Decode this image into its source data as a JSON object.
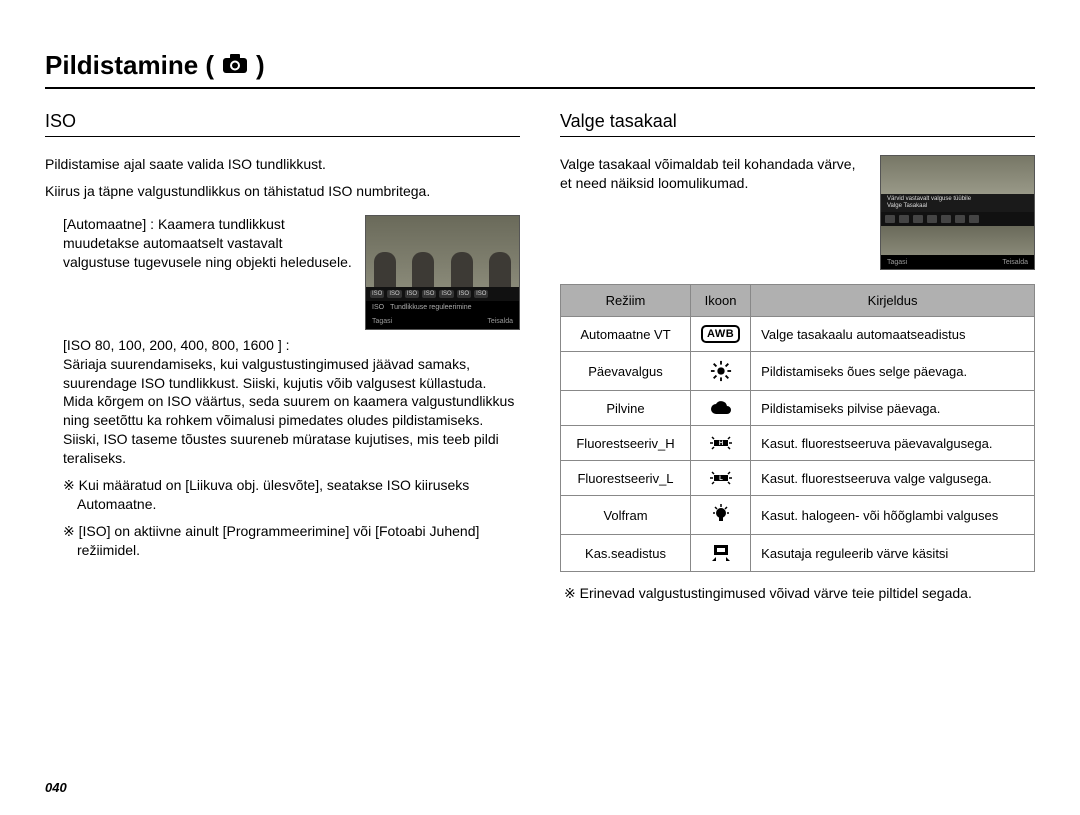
{
  "page": {
    "title_prefix": "Pildistamine (",
    "title_suffix": " )",
    "number": "040"
  },
  "iso": {
    "heading": "ISO",
    "intro1": "Pildistamise ajal saate valida ISO tundlikkust.",
    "intro2": "Kiirus ja täpne valgustundlikkus on tähistatud ISO numbritega.",
    "auto_label": "[Automaatne] :",
    "auto_desc": "Kaamera tundlikkust muudetakse automaatselt vastavalt valgustuse tugevusele ning objekti heledusele.",
    "range_label": "[ISO 80, 100, 200, 400, 800, 1600 ] :",
    "range_desc": "Säriaja suurendamiseks, kui valgustustingimused jäävad samaks, suurendage ISO tundlikkust. Siiski, kujutis võib valgusest küllastuda. Mida kõrgem on ISO väärtus, seda suurem on kaamera valgustundlikkus ning seetõttu ka rohkem võimalusi pimedates oludes pildistamiseks. Siiski, ISO taseme tõustes suureneb müratase kujutises, mis teeb pildi teraliseks.",
    "note1": "※ Kui määratud on [Liikuva obj. ülesvõte], seatakse ISO kiiruseks Automaatne.",
    "note2": "※ [ISO] on aktiivne ainult [Programmeerimine] või [Fotoabi Juhend] režiimidel.",
    "shot_iso_label": "ISO",
    "shot_caption": "Tundlikkuse reguleerimine",
    "shot_back": "Tagasi",
    "shot_move": "Teisalda"
  },
  "wb": {
    "heading": "Valge tasakaal",
    "intro": "Valge tasakaal võimaldab teil kohandada värve, et need näiksid loomulikumad.",
    "shot_line1": "Värvid vastavalt valguse tüübile",
    "shot_line2": "Valge Tasakaal",
    "shot_back": "Tagasi",
    "shot_move": "Teisalda",
    "table": {
      "head_mode": "Režiim",
      "head_icon": "Ikoon",
      "head_desc": "Kirjeldus",
      "rows": [
        {
          "mode": "Automaatne VT",
          "icon": "awb",
          "desc": "Valge tasakaalu automaatseadistus"
        },
        {
          "mode": "Päevavalgus",
          "icon": "sun",
          "desc": "Pildistamiseks õues selge päevaga."
        },
        {
          "mode": "Pilvine",
          "icon": "cloud",
          "desc": "Pildistamiseks pilvise päevaga."
        },
        {
          "mode": "Fluorestseeriv_H",
          "icon": "fluor-h",
          "desc": "Kasut. fluorestseeruva päevavalgusega."
        },
        {
          "mode": "Fluorestseeriv_L",
          "icon": "fluor-l",
          "desc": "Kasut. fluorestseeruva valge valgusega."
        },
        {
          "mode": "Volfram",
          "icon": "bulb",
          "desc": "Kasut. halogeen- või hõõglambi valguses"
        },
        {
          "mode": "Kas.seadistus",
          "icon": "custom",
          "desc": "Kasutaja reguleerib värve käsitsi"
        }
      ]
    },
    "footnote": "※ Erinevad valgustustingimused võivad värve teie piltidel segada."
  }
}
